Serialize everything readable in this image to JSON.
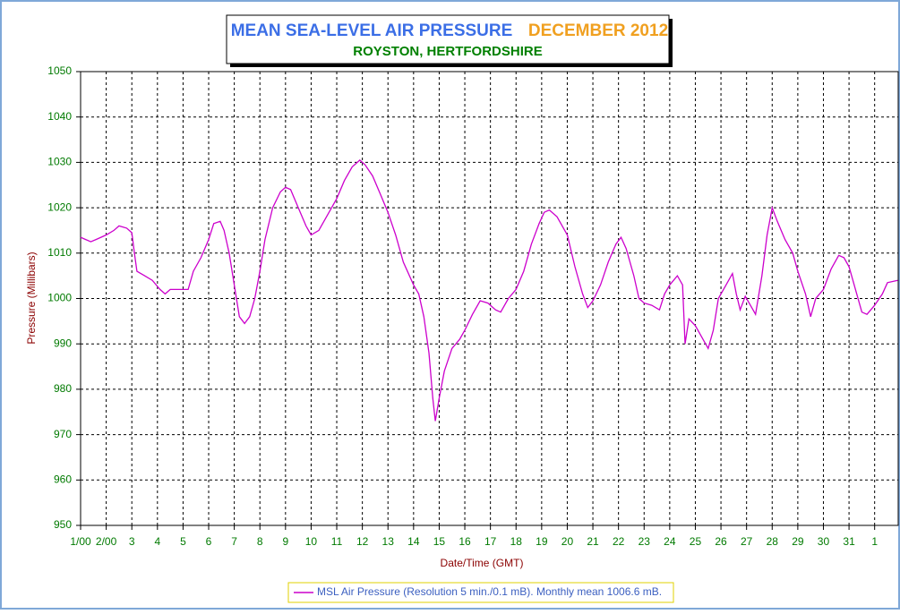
{
  "chart_data": {
    "type": "line",
    "title": "MEAN SEA-LEVEL AIR PRESSURE",
    "title_period": "DECEMBER 2012",
    "subtitle": "ROYSTON, HERTFORDSHIRE",
    "y_label": "Pressure (Millibars)",
    "x_label": "Date/Time (GMT)",
    "grid": true,
    "legend": "bottom",
    "x": [
      0,
      0.2,
      0.4,
      0.6,
      1.0,
      1.3,
      1.5,
      1.8,
      2.0,
      2.1,
      2.2,
      2.5,
      2.8,
      3.1,
      3.3,
      3.5,
      4.0,
      4.2,
      4.4,
      4.7,
      5.0,
      5.2,
      5.45,
      5.6,
      5.8,
      6.0,
      6.2,
      6.4,
      6.6,
      6.8,
      7.0,
      7.2,
      7.5,
      7.8,
      8.0,
      8.2,
      8.5,
      8.8,
      9.0,
      9.3,
      9.6,
      10.0,
      10.3,
      10.6,
      10.9,
      11.1,
      11.4,
      11.7,
      12.0,
      12.3,
      12.6,
      13.0,
      13.2,
      13.4,
      13.6,
      13.75,
      13.85,
      14.0,
      14.2,
      14.5,
      14.8,
      15.0,
      15.3,
      15.6,
      15.9,
      16.2,
      16.4,
      16.7,
      17.0,
      17.3,
      17.6,
      17.9,
      18.1,
      18.3,
      18.6,
      19.0,
      19.3,
      19.6,
      19.8,
      20.0,
      20.3,
      20.6,
      20.9,
      21.1,
      21.3,
      21.6,
      21.8,
      22.0,
      22.3,
      22.6,
      22.8,
      23.0,
      23.3,
      23.5,
      23.6,
      23.75,
      24.0,
      24.3,
      24.5,
      24.7,
      24.9,
      25.2,
      25.45,
      25.6,
      25.75,
      25.95,
      26.2,
      26.35,
      26.6,
      26.8,
      27.0,
      27.2,
      27.5,
      27.8,
      28.0,
      28.3,
      28.5,
      28.7,
      29.0,
      29.3,
      29.6,
      29.8,
      30.0,
      30.3,
      30.5,
      30.7,
      31.0,
      31.3,
      31.5,
      31.9
    ],
    "series": [
      {
        "name": "MSL Air Pressure (Resolution 5 min./0.1 mB). Monthly mean 1006.6 mB.",
        "color": "#cc00cc",
        "values": [
          1013.5,
          1013,
          1012.5,
          1013,
          1014,
          1015,
          1016,
          1015.5,
          1014.5,
          1010,
          1006,
          1005,
          1004,
          1002,
          1001,
          1002,
          1002,
          1002,
          1006,
          1009,
          1013,
          1016.5,
          1017,
          1015,
          1010,
          1003,
          996,
          994.5,
          996,
          1000,
          1006,
          1013,
          1020,
          1023.5,
          1024.5,
          1024,
          1020,
          1016,
          1014,
          1015,
          1018,
          1022,
          1026,
          1029,
          1030.5,
          1029.5,
          1027,
          1023,
          1019,
          1014,
          1008,
          1003,
          1001,
          996,
          988,
          978,
          973,
          978,
          984,
          989,
          991,
          993,
          996.5,
          999.5,
          999,
          997.5,
          997,
          1000,
          1002,
          1006,
          1012,
          1016.5,
          1019,
          1019.5,
          1018,
          1014,
          1007,
          1001,
          998,
          999.5,
          1003,
          1008,
          1012,
          1013.5,
          1011,
          1005,
          1000,
          999,
          998.5,
          997.5,
          1001,
          1003,
          1005,
          1003,
          990,
          995.5,
          994,
          991,
          989,
          993,
          1000,
          1003,
          1005.5,
          1001,
          997.5,
          1000.5,
          998,
          996.5,
          1005,
          1014,
          1020,
          1017,
          1013,
          1010,
          1006,
          1001,
          996,
          1000,
          1002,
          1006.5,
          1009.5,
          1009,
          1007,
          1001,
          997,
          996.5,
          998.5,
          1001,
          1003.5,
          1004
        ]
      }
    ],
    "xlim": [
      0,
      31.92
    ],
    "xticks": [
      {
        "value": 0,
        "label": "1/00"
      },
      {
        "value": 1,
        "label": "2/00"
      },
      {
        "value": 2,
        "label": "3"
      },
      {
        "value": 3,
        "label": "4"
      },
      {
        "value": 4,
        "label": "5"
      },
      {
        "value": 5,
        "label": "6"
      },
      {
        "value": 6,
        "label": "7"
      },
      {
        "value": 7,
        "label": "8"
      },
      {
        "value": 8,
        "label": "9"
      },
      {
        "value": 9,
        "label": "10"
      },
      {
        "value": 10,
        "label": "11"
      },
      {
        "value": 11,
        "label": "12"
      },
      {
        "value": 12,
        "label": "13"
      },
      {
        "value": 13,
        "label": "14"
      },
      {
        "value": 14,
        "label": "15"
      },
      {
        "value": 15,
        "label": "16"
      },
      {
        "value": 16,
        "label": "17"
      },
      {
        "value": 17,
        "label": "18"
      },
      {
        "value": 18,
        "label": "19"
      },
      {
        "value": 19,
        "label": "20"
      },
      {
        "value": 20,
        "label": "21"
      },
      {
        "value": 21,
        "label": "22"
      },
      {
        "value": 22,
        "label": "23"
      },
      {
        "value": 23,
        "label": "24"
      },
      {
        "value": 24,
        "label": "25"
      },
      {
        "value": 25,
        "label": "26"
      },
      {
        "value": 26,
        "label": "27"
      },
      {
        "value": 27,
        "label": "28"
      },
      {
        "value": 28,
        "label": "29"
      },
      {
        "value": 29,
        "label": "30"
      },
      {
        "value": 30,
        "label": "31"
      },
      {
        "value": 31,
        "label": "1"
      }
    ],
    "ylim": [
      950,
      1050
    ],
    "yticks": [
      950,
      960,
      970,
      980,
      990,
      1000,
      1010,
      1020,
      1030,
      1040,
      1050
    ]
  }
}
